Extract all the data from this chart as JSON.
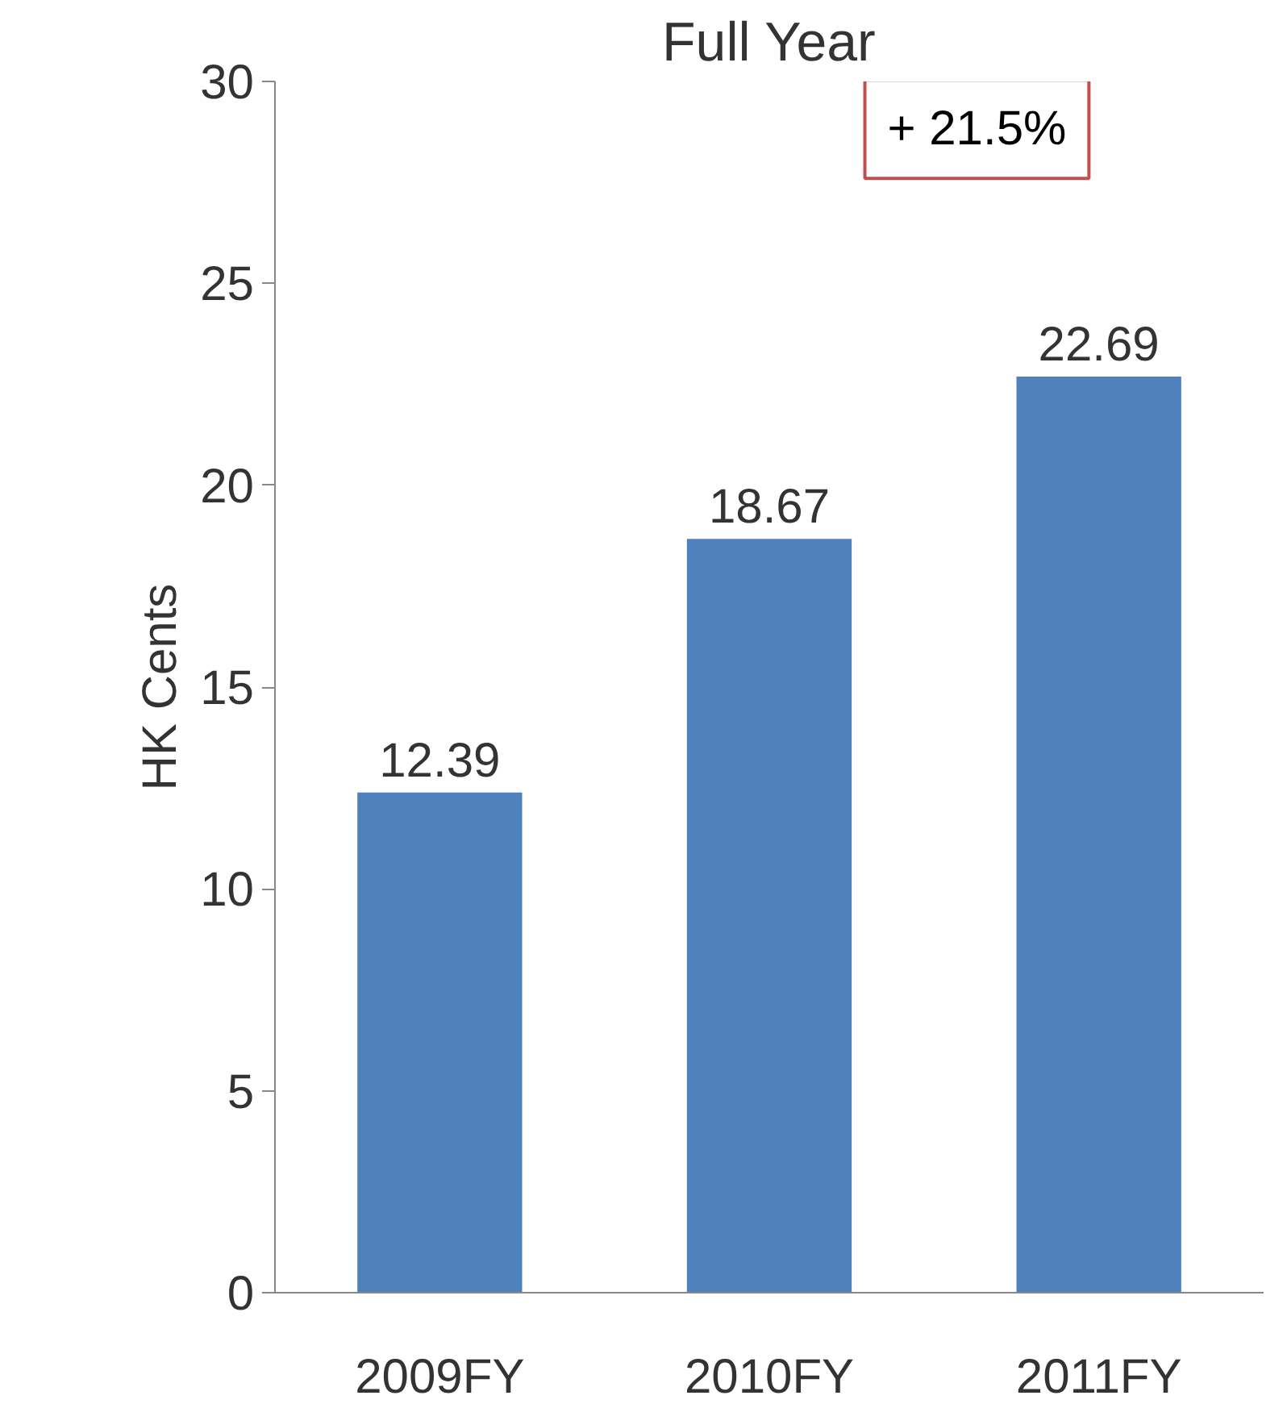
{
  "chart_data": {
    "type": "bar",
    "title": "Full Year",
    "ylabel": "HK Cents",
    "categories": [
      "2009FY",
      "2010FY",
      "2011FY"
    ],
    "values": [
      12.39,
      18.67,
      22.69
    ],
    "color": "#4f81bd",
    "ylim": [
      0,
      30
    ],
    "yticks": [
      0,
      5,
      10,
      15,
      20,
      25,
      30
    ],
    "data_labels": true,
    "annotations": [
      "+ 21.5%"
    ]
  }
}
